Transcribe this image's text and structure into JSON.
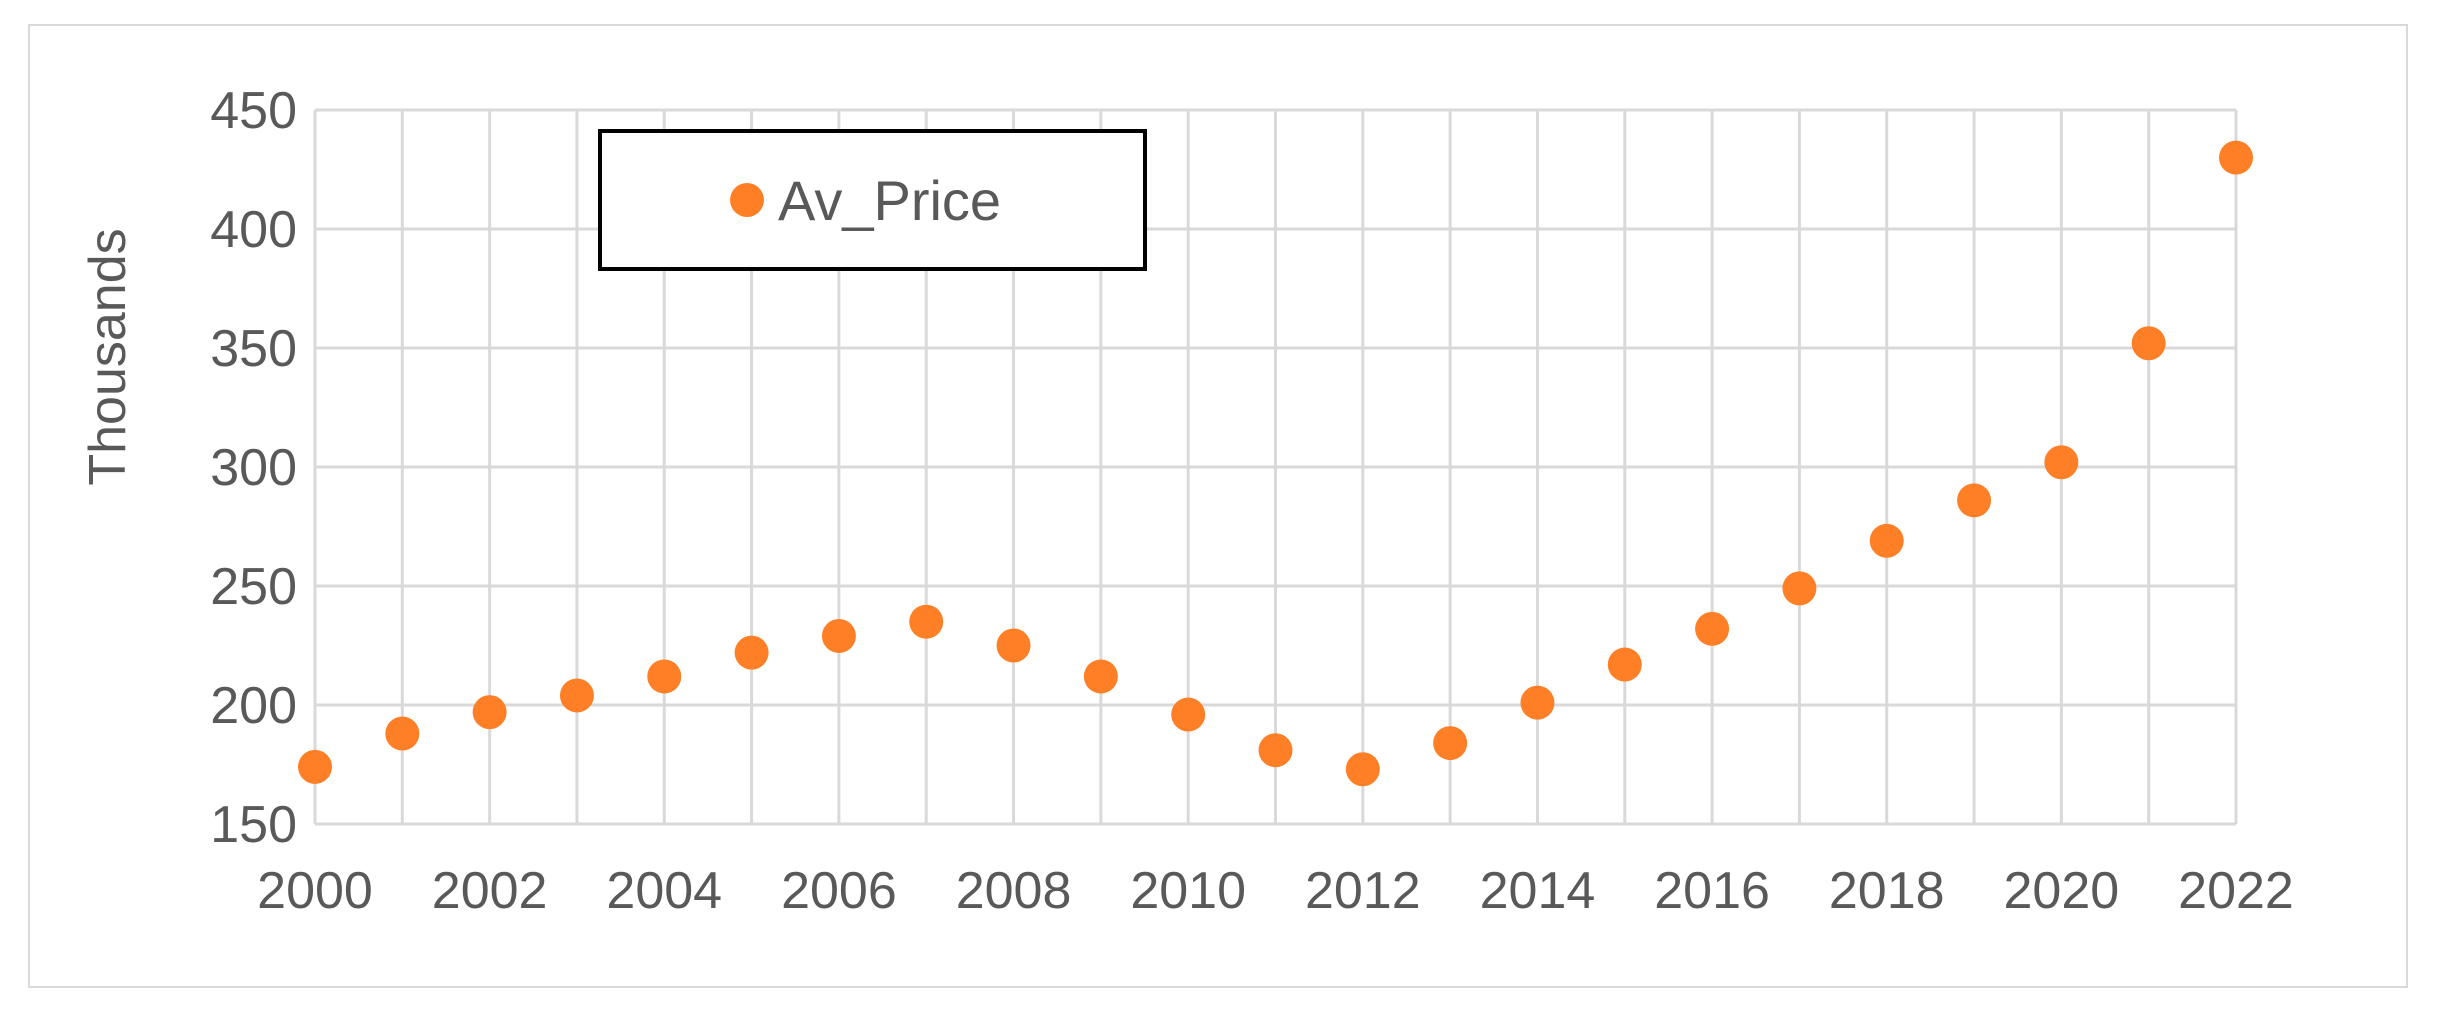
{
  "chart_data": {
    "type": "scatter",
    "title": "",
    "xlabel": "",
    "ylabel": "Thousands",
    "xlim": [
      2000,
      2022
    ],
    "ylim": [
      150,
      450
    ],
    "x_ticks": [
      2000,
      2002,
      2004,
      2006,
      2008,
      2010,
      2012,
      2014,
      2016,
      2018,
      2020,
      2022
    ],
    "y_ticks": [
      150,
      200,
      250,
      300,
      350,
      400,
      450
    ],
    "grid": true,
    "legend_position": "top-left",
    "series": [
      {
        "name": "Av_Price",
        "color": "#ff7f27",
        "x": [
          2000,
          2001,
          2002,
          2003,
          2004,
          2005,
          2006,
          2007,
          2008,
          2009,
          2010,
          2011,
          2012,
          2013,
          2014,
          2015,
          2016,
          2017,
          2018,
          2019,
          2020,
          2021,
          2022
        ],
        "y": [
          174,
          188,
          197,
          204,
          212,
          222,
          229,
          235,
          225,
          212,
          196,
          181,
          173,
          184,
          201,
          217,
          232,
          249,
          269,
          286,
          302,
          352,
          430
        ]
      }
    ]
  }
}
